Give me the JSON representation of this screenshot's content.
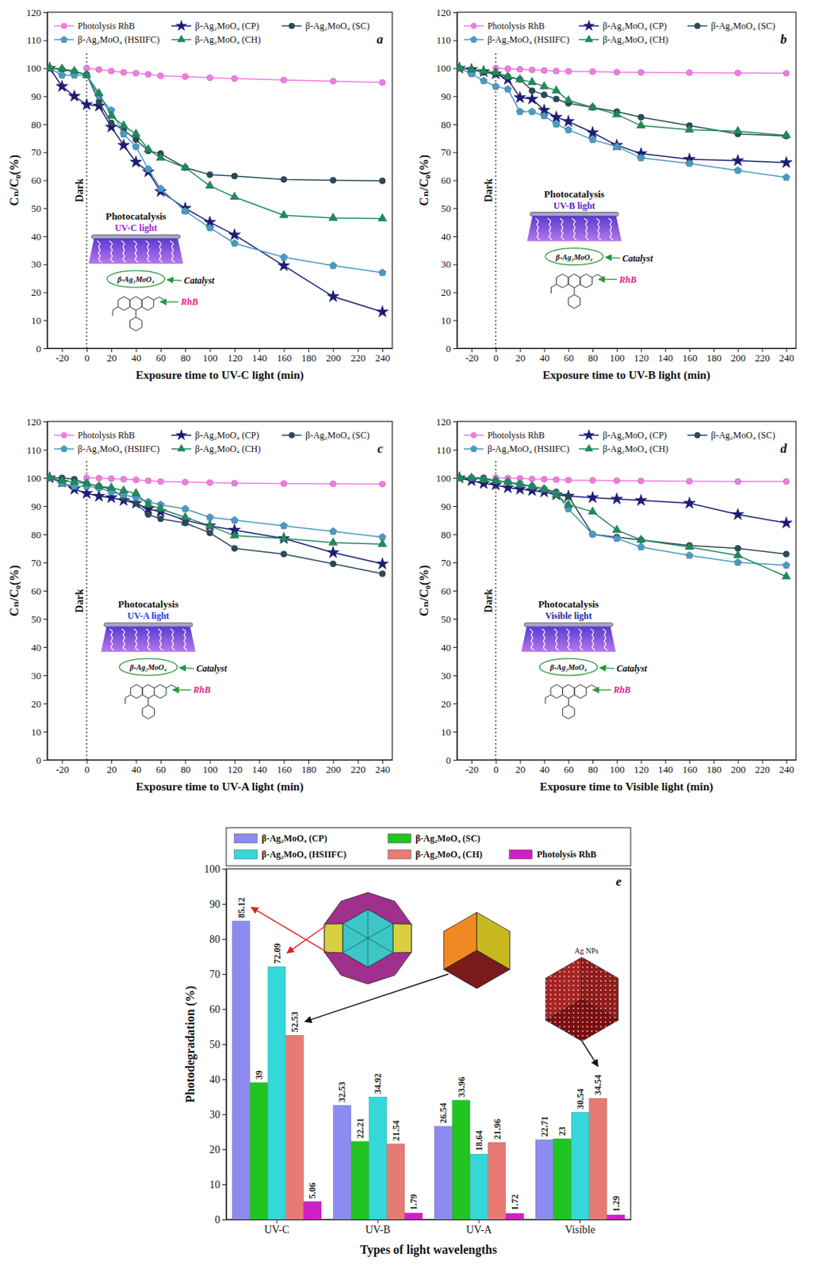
{
  "chart_data": [
    {
      "type": "line",
      "letter": "a",
      "x": [
        -30,
        -20,
        -10,
        0,
        10,
        20,
        30,
        40,
        50,
        60,
        80,
        100,
        120,
        160,
        200,
        240
      ],
      "xlim": [
        -32,
        248
      ],
      "xticks": [
        -20,
        0,
        20,
        40,
        60,
        80,
        100,
        120,
        140,
        160,
        180,
        200,
        220,
        240
      ],
      "ylim": [
        0,
        120
      ],
      "yticks": [
        0,
        10,
        20,
        30,
        40,
        50,
        60,
        70,
        80,
        90,
        100,
        110,
        120
      ],
      "x_label": "Exposure time to UV-C light (min)",
      "y_label": "Cₙ/C₀(%)",
      "legend": "top",
      "grid": false,
      "dark_period_end": 0,
      "annotations": {
        "dark": "Dark",
        "inset_title": "Photocatalysis",
        "light": "UV-C light",
        "catalyst": "β-Ag₂MoO₄",
        "catalyst_label": "Catalyst",
        "dye": "RhB"
      },
      "series": [
        {
          "name": "Photolysis RhB",
          "color": "#f07ce0",
          "marker": "circle",
          "values": [
            null,
            null,
            null,
            100,
            99.5,
            99,
            98.5,
            98.2,
            97.8,
            97.3,
            97,
            96.6,
            96.3,
            95.8,
            95.4,
            94.9
          ]
        },
        {
          "name": "β-Ag₂MoO₄ (CP)",
          "color": "#1c1c7a",
          "marker": "star",
          "values": [
            100,
            93.5,
            90,
            87,
            86.5,
            79,
            72.5,
            66.5,
            63,
            56,
            50,
            45,
            40.5,
            29.5,
            18.5,
            13
          ]
        },
        {
          "name": "β-Ag₂MoO₄ (SC)",
          "color": "#2a4a5a",
          "marker": "circle",
          "values": [
            100,
            99.5,
            98.8,
            97.8,
            88,
            80.5,
            78,
            74.5,
            70.5,
            69.5,
            64.5,
            62,
            61.5,
            60.3,
            60,
            59.8
          ]
        },
        {
          "name": "β-Ag₂MoO₄ (HSIIFC)",
          "color": "#4a9ac0",
          "marker": "pentagon",
          "values": [
            100,
            97.5,
            97.5,
            97.5,
            90,
            85,
            76.5,
            72,
            64,
            57,
            49,
            43,
            37.5,
            32.5,
            29.5,
            27
          ]
        },
        {
          "name": "β-Ag₂MoO₄ (CH)",
          "color": "#218a5a",
          "marker": "triangle",
          "values": [
            100,
            99.8,
            99,
            97.5,
            91,
            83,
            79.5,
            76.5,
            71,
            68,
            64.5,
            58,
            54,
            47.5,
            46.5,
            46.3
          ]
        }
      ]
    },
    {
      "type": "line",
      "letter": "b",
      "x": [
        -30,
        -20,
        -10,
        0,
        10,
        20,
        30,
        40,
        50,
        60,
        80,
        100,
        120,
        160,
        200,
        240
      ],
      "xlim": [
        -32,
        248
      ],
      "xticks": [
        -20,
        0,
        20,
        40,
        60,
        80,
        100,
        120,
        140,
        160,
        180,
        200,
        220,
        240
      ],
      "ylim": [
        0,
        120
      ],
      "yticks": [
        0,
        10,
        20,
        30,
        40,
        50,
        60,
        70,
        80,
        90,
        100,
        110,
        120
      ],
      "x_label": "Exposure time to UV-B light (min)",
      "y_label": "Cₙ/C₀(%)",
      "legend": "top",
      "grid": false,
      "dark_period_end": 0,
      "annotations": {
        "dark": "Dark",
        "inset_title": "Photocatalysis",
        "light": "UV-B light",
        "catalyst": "β-Ag₂MoO₄",
        "catalyst_label": "Catalyst",
        "dye": "RhB"
      },
      "series": [
        {
          "name": "Photolysis RhB",
          "color": "#f07ce0",
          "marker": "circle",
          "values": [
            null,
            null,
            null,
            100,
            99.8,
            99.6,
            99.4,
            99.2,
            99,
            98.9,
            98.8,
            98.6,
            98.5,
            98.4,
            98.3,
            98.2
          ]
        },
        {
          "name": "β-Ag₂MoO₄ (CP)",
          "color": "#1c1c7a",
          "marker": "star",
          "values": [
            100,
            99.5,
            98.8,
            98,
            96,
            89.5,
            89,
            85,
            82.5,
            81,
            77,
            72.5,
            69.5,
            67.5,
            67,
            66.3
          ]
        },
        {
          "name": "β-Ag₂MoO₄ (SC)",
          "color": "#2a4a5a",
          "marker": "circle",
          "values": [
            100,
            99.5,
            98.5,
            98,
            97,
            96,
            92,
            90.5,
            89,
            87.5,
            86,
            84.5,
            82.5,
            79.5,
            76.5,
            75.8
          ]
        },
        {
          "name": "β-Ag₂MoO₄ (HSIIFC)",
          "color": "#4a9ac0",
          "marker": "pentagon",
          "values": [
            100,
            98,
            95.5,
            93.5,
            92.5,
            84.5,
            84.5,
            83,
            80,
            78,
            74.5,
            72,
            68,
            66,
            63.5,
            61
          ]
        },
        {
          "name": "β-Ag₂MoO₄ (CH)",
          "color": "#218a5a",
          "marker": "triangle",
          "values": [
            100,
            99.5,
            99,
            98.5,
            97,
            96,
            95,
            93.5,
            92,
            88.5,
            86,
            83.5,
            79.5,
            78,
            77.5,
            76
          ]
        }
      ]
    },
    {
      "type": "line",
      "letter": "c",
      "x": [
        -30,
        -20,
        -10,
        0,
        10,
        20,
        30,
        40,
        50,
        60,
        80,
        100,
        120,
        160,
        200,
        240
      ],
      "xlim": [
        -32,
        248
      ],
      "xticks": [
        -20,
        0,
        20,
        40,
        60,
        80,
        100,
        120,
        140,
        160,
        180,
        200,
        220,
        240
      ],
      "ylim": [
        0,
        120
      ],
      "yticks": [
        0,
        10,
        20,
        30,
        40,
        50,
        60,
        70,
        80,
        90,
        100,
        110,
        120
      ],
      "x_label": "Exposure time to UV-A light (min)",
      "y_label": "Cₙ/C₀(%)",
      "legend": "top",
      "grid": false,
      "dark_period_end": 0,
      "annotations": {
        "dark": "Dark",
        "inset_title": "Photocatalysis",
        "light": "UV-A light",
        "catalyst": "β-Ag₂MoO₄",
        "catalyst_label": "Catalyst",
        "dye": "RhB"
      },
      "series": [
        {
          "name": "Photolysis RhB",
          "color": "#f07ce0",
          "marker": "circle",
          "values": [
            null,
            null,
            null,
            100,
            99.9,
            99.7,
            99.5,
            99.3,
            99,
            98.7,
            98.5,
            98.3,
            98.1,
            98,
            97.9,
            97.8
          ]
        },
        {
          "name": "β-Ag₂MoO₄ (CP)",
          "color": "#1c1c7a",
          "marker": "star",
          "values": [
            100,
            98.5,
            96,
            94.5,
            93.5,
            93,
            92,
            91,
            89,
            88,
            85,
            83,
            81.5,
            78.5,
            73.5,
            69.5
          ]
        },
        {
          "name": "β-Ag₂MoO₄ (SC)",
          "color": "#2a4a5a",
          "marker": "circle",
          "values": [
            100,
            100,
            99.5,
            98,
            97,
            96,
            93,
            91,
            87,
            85.5,
            84,
            80.5,
            75,
            73,
            69.5,
            66
          ]
        },
        {
          "name": "β-Ag₂MoO₄ (HSIIFC)",
          "color": "#4a9ac0",
          "marker": "pentagon",
          "values": [
            100,
            98,
            97,
            97,
            96.5,
            95,
            94,
            93,
            91.5,
            90.5,
            89,
            86,
            85,
            83,
            81,
            79
          ]
        },
        {
          "name": "β-Ag₂MoO₄ (CH)",
          "color": "#218a5a",
          "marker": "triangle",
          "values": [
            100,
            99,
            98.5,
            98,
            97,
            96.5,
            95.5,
            94.5,
            90.5,
            89,
            86,
            83,
            79.5,
            78.5,
            77,
            76.5
          ]
        }
      ]
    },
    {
      "type": "line",
      "letter": "d",
      "x": [
        -30,
        -20,
        -10,
        0,
        10,
        20,
        30,
        40,
        50,
        60,
        80,
        100,
        120,
        160,
        200,
        240
      ],
      "xlim": [
        -32,
        248
      ],
      "xticks": [
        -20,
        0,
        20,
        40,
        60,
        80,
        100,
        120,
        140,
        160,
        180,
        200,
        220,
        240
      ],
      "ylim": [
        0,
        120
      ],
      "yticks": [
        0,
        10,
        20,
        30,
        40,
        50,
        60,
        70,
        80,
        90,
        100,
        110,
        120
      ],
      "x_label": "Exposure time to Visible light (min)",
      "y_label": "Cₙ/C₀(%)",
      "legend": "top",
      "grid": false,
      "dark_period_end": 0,
      "annotations": {
        "dark": "Dark",
        "inset_title": "Photocatalysis",
        "light": "Visible light",
        "catalyst": "β-Ag₂MoO₄",
        "catalyst_label": "Catalyst",
        "dye": "RhB"
      },
      "series": [
        {
          "name": "Photolysis RhB",
          "color": "#f07ce0",
          "marker": "circle",
          "values": [
            null,
            null,
            null,
            100,
            99.9,
            99.8,
            99.6,
            99.5,
            99.4,
            99.2,
            99.1,
            99,
            98.9,
            98.8,
            98.7,
            98.7
          ]
        },
        {
          "name": "β-Ag₂MoO₄ (CP)",
          "color": "#1c1c7a",
          "marker": "star",
          "values": [
            100,
            99,
            98,
            97.5,
            96.5,
            96,
            95.5,
            95,
            94,
            93.5,
            93,
            92.5,
            92,
            91,
            87,
            84
          ]
        },
        {
          "name": "β-Ag₂MoO₄ (SC)",
          "color": "#2a4a5a",
          "marker": "circle",
          "values": [
            100,
            100,
            100,
            99,
            98.5,
            97.5,
            97,
            96,
            95,
            93.5,
            80,
            79,
            78,
            76,
            75,
            73
          ]
        },
        {
          "name": "β-Ag₂MoO₄ (HSIIFC)",
          "color": "#4a9ac0",
          "marker": "pentagon",
          "values": [
            100,
            100,
            99.5,
            99,
            98.5,
            98,
            97,
            96,
            94.5,
            89,
            80,
            78.5,
            75.5,
            72.5,
            70,
            69
          ]
        },
        {
          "name": "β-Ag₂MoO₄ (CH)",
          "color": "#218a5a",
          "marker": "triangle",
          "values": [
            100,
            100,
            99.5,
            99,
            98.5,
            97.5,
            97,
            96,
            94,
            90.5,
            88,
            81.5,
            78,
            75.5,
            72.5,
            65
          ]
        }
      ]
    },
    {
      "type": "bar",
      "letter": "e",
      "categories": [
        "UV-C",
        "UV-B",
        "UV-A",
        "Visíble"
      ],
      "ylim": [
        0,
        100
      ],
      "yticks": [
        0,
        10,
        20,
        30,
        40,
        50,
        60,
        70,
        80,
        90,
        100
      ],
      "x_label": "Types of light wavelengths",
      "y_label": "Photodegradation (%)",
      "legend": "above",
      "grid": false,
      "data_labels": true,
      "annotations": {
        "nanoparticles": "Ag NPs"
      },
      "series": [
        {
          "name": "β-Ag₂MoO₄ (CP)",
          "color": "#8c8cf0",
          "values": [
            85.12,
            32.53,
            26.54,
            22.71
          ]
        },
        {
          "name": "β-Ag₂MoO₄ (SC)",
          "color": "#22c422",
          "values": [
            39,
            22.21,
            33.96,
            23
          ]
        },
        {
          "name": "β-Ag₂MoO₄ (HSIIFC)",
          "color": "#34d8d8",
          "values": [
            72.09,
            34.92,
            18.64,
            30.54
          ]
        },
        {
          "name": "β-Ag₂MoO₄ (CH)",
          "color": "#e87a74",
          "values": [
            52.53,
            21.54,
            21.96,
            34.54
          ]
        },
        {
          "name": "Photolysis RhB",
          "color": "#d020c8",
          "values": [
            5.06,
            1.79,
            1.72,
            1.29
          ]
        }
      ]
    }
  ]
}
